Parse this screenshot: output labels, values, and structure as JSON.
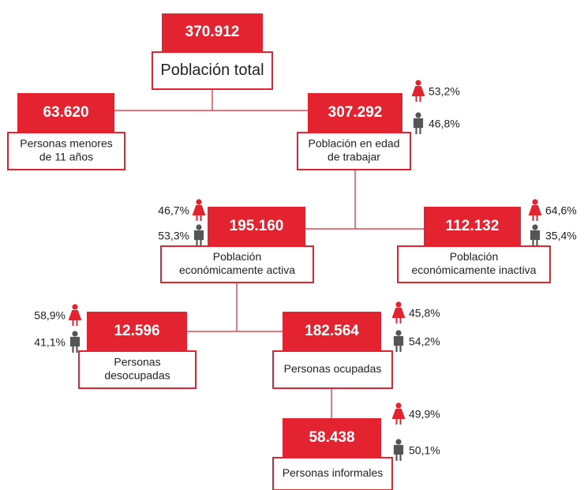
{
  "nodes": [
    {
      "value": "370.912",
      "label": [
        "Población total"
      ]
    },
    {
      "value": "63.620",
      "label": [
        "Personas menores",
        "de 11 años"
      ]
    },
    {
      "value": "307.292",
      "label": [
        "Población en edad",
        "de trabajar"
      ],
      "female": "53,2%",
      "male": "46,8%"
    },
    {
      "value": "195.160",
      "label": [
        "Población",
        "económicamente activa"
      ],
      "female": "46,7%",
      "male": "53,3%"
    },
    {
      "value": "112.132",
      "label": [
        "Población",
        "económicamente inactiva"
      ],
      "female": "64,6%",
      "male": "35,4%"
    },
    {
      "value": "12.596",
      "label": [
        "Personas",
        "desocupadas"
      ],
      "female": "58,9%",
      "male": "41,1%"
    },
    {
      "value": "182.564",
      "label": [
        "Personas ocupadas"
      ],
      "female": "45,8%",
      "male": "54,2%"
    },
    {
      "value": "58.438",
      "label": [
        "Personas informales"
      ],
      "female": "49,9%",
      "male": "50,1%"
    }
  ]
}
